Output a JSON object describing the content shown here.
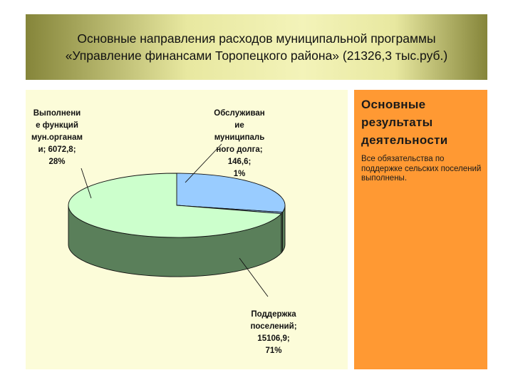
{
  "title": {
    "line1": "Основные направления расходов муниципальной программы",
    "line2": "«Управление финансами Торопецкого района» (21326,3 тыс.руб.)"
  },
  "chart_data": {
    "type": "pie",
    "variant": "3d",
    "total": 21326.3,
    "slices": [
      {
        "category": "Выполнение функций мун.органами",
        "value": 6072.8,
        "percent": 28,
        "color": "#99ccff",
        "label_lines": [
          "Выполнени",
          "е функций",
          "мун.органам",
          "и; 6072,8;",
          "28%"
        ]
      },
      {
        "category": "Обслуживание муниципального долга",
        "value": 146.6,
        "percent": 1,
        "color": "#99ccff",
        "label_lines": [
          "Обслуживан",
          "ие",
          "муниципаль",
          "ного долга;",
          "146,6;",
          "1%"
        ]
      },
      {
        "category": "Поддержка поселений",
        "value": 15106.9,
        "percent": 71,
        "color": "#ccffcc",
        "side_color": "#5a7f5a",
        "label_lines": [
          "Поддержка",
          "поселений;",
          "15106,9;",
          "71%"
        ]
      }
    ]
  },
  "results": {
    "heading_lines": [
      "Основные",
      "результаты",
      "деятельности"
    ],
    "text": "Все обязательства по поддержке сельских поселений выполнены."
  }
}
